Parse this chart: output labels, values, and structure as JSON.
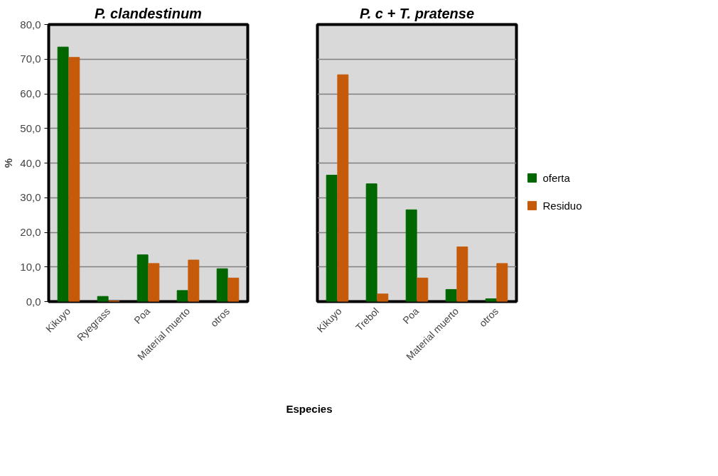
{
  "chart_data": [
    {
      "type": "bar",
      "title": "P. clandestinum",
      "ylabel": "%",
      "xlabel": "Especies",
      "categories": [
        "Kikuyo",
        "Ryegrass",
        "Poa",
        "Material muerto",
        "otros"
      ],
      "series": [
        {
          "color": "#006600",
          "values": [
            73.5,
            1.5,
            13.5,
            3.2,
            9.5
          ]
        },
        {
          "color": "#c55a0a",
          "values": [
            70.5,
            0.2,
            11.0,
            12.0,
            6.8
          ]
        }
      ],
      "ylim": [
        0,
        80
      ],
      "yticks": [
        {
          "value": 0,
          "label": "0,0"
        },
        {
          "value": 10,
          "label": "10,0"
        },
        {
          "value": 20,
          "label": "20,0"
        },
        {
          "value": 30,
          "label": "30,0"
        },
        {
          "value": 40,
          "label": "40,0"
        },
        {
          "value": 50,
          "label": "50,0"
        },
        {
          "value": 60,
          "label": "60,0"
        },
        {
          "value": 70,
          "label": "70,0"
        },
        {
          "value": 80,
          "label": "80,0"
        }
      ],
      "grid": "y"
    },
    {
      "type": "bar",
      "title": "P. c + T. pratense",
      "categories": [
        "Kikuyo",
        "Trebol",
        "Poa",
        "Material muerto",
        "otros"
      ],
      "series": [
        {
          "name": "oferta",
          "color": "#006600",
          "values": [
            36.5,
            34.0,
            26.5,
            3.5,
            0.8
          ]
        },
        {
          "name": "Residuo",
          "color": "#c55a0a",
          "values": [
            65.5,
            2.2,
            6.8,
            15.8,
            11.0
          ]
        }
      ],
      "ylim": [
        0,
        80
      ],
      "yticks": [
        0,
        10,
        20,
        30,
        40,
        50,
        60,
        70,
        80
      ],
      "grid": "y",
      "legend": "right",
      "tick_labels": "x"
    }
  ]
}
